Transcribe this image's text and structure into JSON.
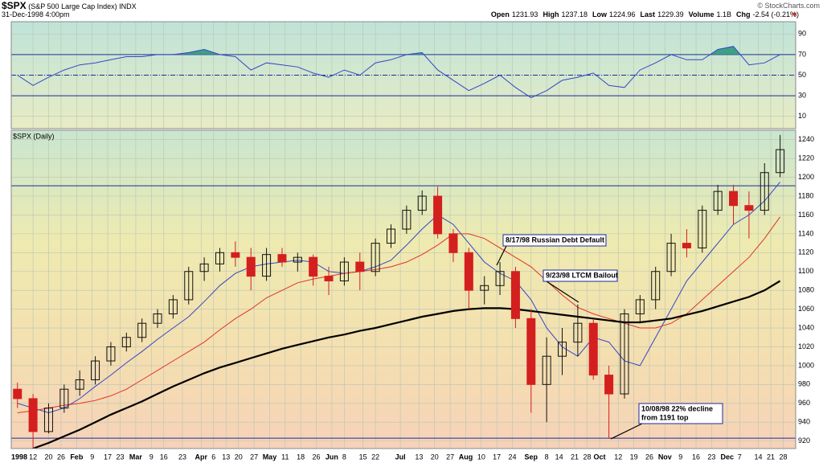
{
  "header": {
    "symbol": "$SPX",
    "name": "(S&P 500 Large Cap Index) INDX",
    "date": "31-Dec-1998 4:00pm",
    "credit": "© StockCharts.com",
    "quote": [
      {
        "label": "Open",
        "value": "1231.93"
      },
      {
        "label": "High",
        "value": "1237.18"
      },
      {
        "label": "Low",
        "value": "1224.96"
      },
      {
        "label": "Last",
        "value": "1229.39"
      },
      {
        "label": "Volume",
        "value": "1.1B"
      },
      {
        "label": "Chg",
        "value": "-2.54 (-0.21%)"
      }
    ]
  },
  "chart_data": [
    {
      "type": "line",
      "color": "#3346c8",
      "fill_above": 70,
      "fill_color": "#3f9f85",
      "x": [
        2,
        7,
        12,
        17,
        22,
        27,
        32,
        37,
        42,
        47,
        52,
        57,
        62,
        67,
        72,
        77,
        82,
        87,
        92,
        97,
        102,
        107,
        112,
        117,
        122,
        127,
        132,
        137,
        142,
        147,
        152,
        157,
        162,
        167,
        172,
        177,
        182,
        187,
        192,
        197,
        202,
        207,
        212,
        217,
        222,
        227,
        232,
        237,
        242,
        247
      ],
      "values": [
        50,
        40,
        48,
        55,
        60,
        62,
        65,
        68,
        68,
        70,
        70,
        72,
        75,
        70,
        68,
        55,
        62,
        60,
        58,
        52,
        48,
        55,
        50,
        62,
        65,
        70,
        72,
        55,
        45,
        35,
        42,
        50,
        38,
        28,
        35,
        45,
        48,
        52,
        40,
        38,
        55,
        62,
        70,
        65,
        65,
        75,
        78,
        60,
        62,
        70
      ],
      "xlim": [
        0,
        252
      ],
      "ylim": [
        -2,
        102
      ],
      "yticks": [
        10,
        30,
        50,
        70,
        90
      ],
      "reference_lines": [
        70,
        50,
        30
      ],
      "grid": true
    },
    {
      "type": "candlestick",
      "title": "$SPX (Daily)",
      "up_color": "#111111",
      "down_color": "#d41f1f",
      "x": [
        2,
        7,
        12,
        17,
        22,
        27,
        32,
        37,
        42,
        47,
        52,
        57,
        62,
        67,
        72,
        77,
        82,
        87,
        92,
        97,
        102,
        107,
        112,
        117,
        122,
        127,
        132,
        137,
        142,
        147,
        152,
        157,
        162,
        167,
        172,
        177,
        182,
        187,
        192,
        197,
        202,
        207,
        212,
        217,
        222,
        227,
        232,
        237,
        242,
        247
      ],
      "open": [
        975,
        965,
        930,
        955,
        975,
        985,
        1005,
        1020,
        1030,
        1045,
        1055,
        1070,
        1100,
        1108,
        1120,
        1115,
        1095,
        1118,
        1110,
        1115,
        1095,
        1090,
        1110,
        1100,
        1130,
        1145,
        1165,
        1180,
        1140,
        1120,
        1080,
        1085,
        1100,
        1050,
        980,
        1010,
        1025,
        1045,
        990,
        970,
        1055,
        1070,
        1100,
        1130,
        1125,
        1165,
        1185,
        1170,
        1165,
        1205
      ],
      "high": [
        982,
        970,
        960,
        980,
        995,
        1010,
        1025,
        1035,
        1050,
        1060,
        1075,
        1105,
        1115,
        1125,
        1132,
        1125,
        1125,
        1125,
        1120,
        1118,
        1105,
        1115,
        1120,
        1135,
        1150,
        1170,
        1186,
        1190,
        1145,
        1125,
        1095,
        1110,
        1105,
        1060,
        1030,
        1040,
        1065,
        1050,
        1000,
        1060,
        1075,
        1105,
        1140,
        1145,
        1170,
        1192,
        1192,
        1185,
        1215,
        1245
      ],
      "low": [
        955,
        912,
        928,
        950,
        968,
        980,
        1000,
        1015,
        1025,
        1040,
        1050,
        1065,
        1090,
        1100,
        1105,
        1080,
        1090,
        1105,
        1100,
        1085,
        1075,
        1085,
        1080,
        1095,
        1125,
        1140,
        1160,
        1135,
        1110,
        1060,
        1065,
        1075,
        1040,
        950,
        940,
        990,
        1010,
        985,
        923,
        965,
        1045,
        1060,
        1095,
        1115,
        1120,
        1160,
        1150,
        1135,
        1160,
        1200
      ],
      "close": [
        965,
        930,
        955,
        975,
        985,
        1005,
        1020,
        1030,
        1045,
        1055,
        1070,
        1100,
        1108,
        1120,
        1115,
        1095,
        1118,
        1110,
        1115,
        1095,
        1090,
        1110,
        1100,
        1130,
        1145,
        1165,
        1180,
        1140,
        1120,
        1080,
        1085,
        1100,
        1050,
        980,
        1010,
        1025,
        1045,
        990,
        970,
        1055,
        1070,
        1100,
        1130,
        1125,
        1165,
        1185,
        1170,
        1165,
        1205,
        1229.39
      ],
      "overlays": [
        {
          "color": "#3346c8",
          "values": [
            960,
            955,
            950,
            955,
            965,
            978,
            990,
            1003,
            1015,
            1028,
            1040,
            1052,
            1068,
            1085,
            1098,
            1105,
            1108,
            1110,
            1112,
            1110,
            1100,
            1098,
            1100,
            1105,
            1112,
            1128,
            1145,
            1160,
            1150,
            1130,
            1110,
            1098,
            1090,
            1070,
            1040,
            1020,
            1010,
            1030,
            1025,
            1005,
            1000,
            1030,
            1060,
            1090,
            1110,
            1130,
            1150,
            1160,
            1175,
            1195
          ]
        },
        {
          "color": "#e0332b",
          "values": [
            950,
            952,
            955,
            958,
            960,
            963,
            968,
            975,
            985,
            995,
            1005,
            1015,
            1025,
            1038,
            1050,
            1060,
            1072,
            1080,
            1088,
            1092,
            1095,
            1098,
            1100,
            1102,
            1105,
            1110,
            1118,
            1128,
            1140,
            1140,
            1135,
            1125,
            1115,
            1105,
            1090,
            1075,
            1062,
            1055,
            1050,
            1045,
            1040,
            1040,
            1045,
            1055,
            1070,
            1085,
            1100,
            1115,
            1135,
            1158
          ]
        },
        {
          "color": "#000000",
          "values": [
            905,
            912,
            918,
            925,
            932,
            940,
            948,
            955,
            962,
            970,
            978,
            985,
            992,
            998,
            1003,
            1008,
            1013,
            1018,
            1022,
            1026,
            1030,
            1033,
            1037,
            1040,
            1044,
            1048,
            1052,
            1055,
            1058,
            1060,
            1061,
            1061,
            1060,
            1058,
            1056,
            1054,
            1052,
            1050,
            1048,
            1046,
            1046,
            1048,
            1050,
            1054,
            1058,
            1063,
            1068,
            1073,
            1080,
            1090
          ]
        }
      ],
      "reference_lines": [
        1191,
        923
      ],
      "annotations": [
        [
          "8/17/98 Russian Debt Default"
        ],
        [
          "9/23/98 LTCM Bailout"
        ],
        [
          "10/08/98 22% decline",
          "from 1191 top"
        ]
      ],
      "xlim": [
        0,
        252
      ],
      "ylim": [
        912,
        1250
      ],
      "yticks": [
        920,
        940,
        960,
        980,
        1000,
        1020,
        1040,
        1060,
        1080,
        1100,
        1120,
        1140,
        1160,
        1180,
        1200,
        1220,
        1240
      ],
      "xticks": [
        {
          "value": 0,
          "label": "1998"
        },
        {
          "value": 7,
          "label": "12"
        },
        {
          "value": 12,
          "label": "20"
        },
        {
          "value": 16,
          "label": "26"
        },
        {
          "value": 21,
          "label": "Feb"
        },
        {
          "value": 26,
          "label": "9"
        },
        {
          "value": 31,
          "label": "17"
        },
        {
          "value": 35,
          "label": "23"
        },
        {
          "value": 40,
          "label": "Mar"
        },
        {
          "value": 45,
          "label": "9"
        },
        {
          "value": 49,
          "label": "16"
        },
        {
          "value": 55,
          "label": "23"
        },
        {
          "value": 61,
          "label": "Apr"
        },
        {
          "value": 65,
          "label": "6"
        },
        {
          "value": 69,
          "label": "13"
        },
        {
          "value": 73,
          "label": "20"
        },
        {
          "value": 78,
          "label": "27"
        },
        {
          "value": 83,
          "label": "May"
        },
        {
          "value": 88,
          "label": "11"
        },
        {
          "value": 93,
          "label": "18"
        },
        {
          "value": 98,
          "label": "26"
        },
        {
          "value": 103,
          "label": "Jun"
        },
        {
          "value": 107,
          "label": "8"
        },
        {
          "value": 113,
          "label": "15"
        },
        {
          "value": 117,
          "label": "22"
        },
        {
          "value": 125,
          "label": "Jul"
        },
        {
          "value": 131,
          "label": "13"
        },
        {
          "value": 136,
          "label": "20"
        },
        {
          "value": 141,
          "label": "27"
        },
        {
          "value": 146,
          "label": "Aug"
        },
        {
          "value": 151,
          "label": "10"
        },
        {
          "value": 156,
          "label": "17"
        },
        {
          "value": 161,
          "label": "24"
        },
        {
          "value": 167,
          "label": "Sep"
        },
        {
          "value": 172,
          "label": "8"
        },
        {
          "value": 176,
          "label": "14"
        },
        {
          "value": 181,
          "label": "21"
        },
        {
          "value": 185,
          "label": "28"
        },
        {
          "value": 189,
          "label": "Oct"
        },
        {
          "value": 195,
          "label": "12"
        },
        {
          "value": 200,
          "label": "19"
        },
        {
          "value": 205,
          "label": "26"
        },
        {
          "value": 210,
          "label": "Nov"
        },
        {
          "value": 215,
          "label": "9"
        },
        {
          "value": 220,
          "label": "16"
        },
        {
          "value": 225,
          "label": "23"
        },
        {
          "value": 230,
          "label": "Dec"
        },
        {
          "value": 234,
          "label": "7"
        },
        {
          "value": 240,
          "label": "14"
        },
        {
          "value": 244,
          "label": "21"
        },
        {
          "value": 248,
          "label": "28"
        }
      ],
      "grid": true
    }
  ]
}
